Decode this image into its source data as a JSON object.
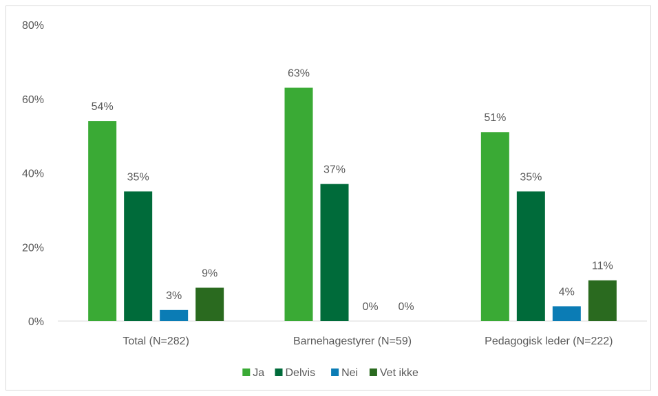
{
  "chart_data": {
    "type": "bar",
    "categories": [
      "Total (N=282)",
      "Barnehagestyrer (N=59)",
      "Pedagogisk leder (N=222)"
    ],
    "series": [
      {
        "name": "Ja",
        "color": "#3aaa35",
        "values": [
          54,
          63,
          51
        ],
        "labels": [
          "54%",
          "63%",
          "51%"
        ]
      },
      {
        "name": "Delvis",
        "color": "#006b3a",
        "values": [
          35,
          37,
          35
        ],
        "labels": [
          "35%",
          "37%",
          "35%"
        ]
      },
      {
        "name": "Nei",
        "color": "#0b7cb5",
        "values": [
          3,
          0,
          4
        ],
        "labels": [
          "3%",
          "0%",
          "4%"
        ]
      },
      {
        "name": "Vet ikke",
        "color": "#2a6a1f",
        "values": [
          9,
          0,
          11
        ],
        "labels": [
          "9%",
          "0%",
          "11%"
        ]
      }
    ],
    "yticks": [
      "0%",
      "20%",
      "40%",
      "60%",
      "80%"
    ],
    "ylim": [
      0,
      80
    ],
    "legend_position": "bottom",
    "grid": false
  }
}
